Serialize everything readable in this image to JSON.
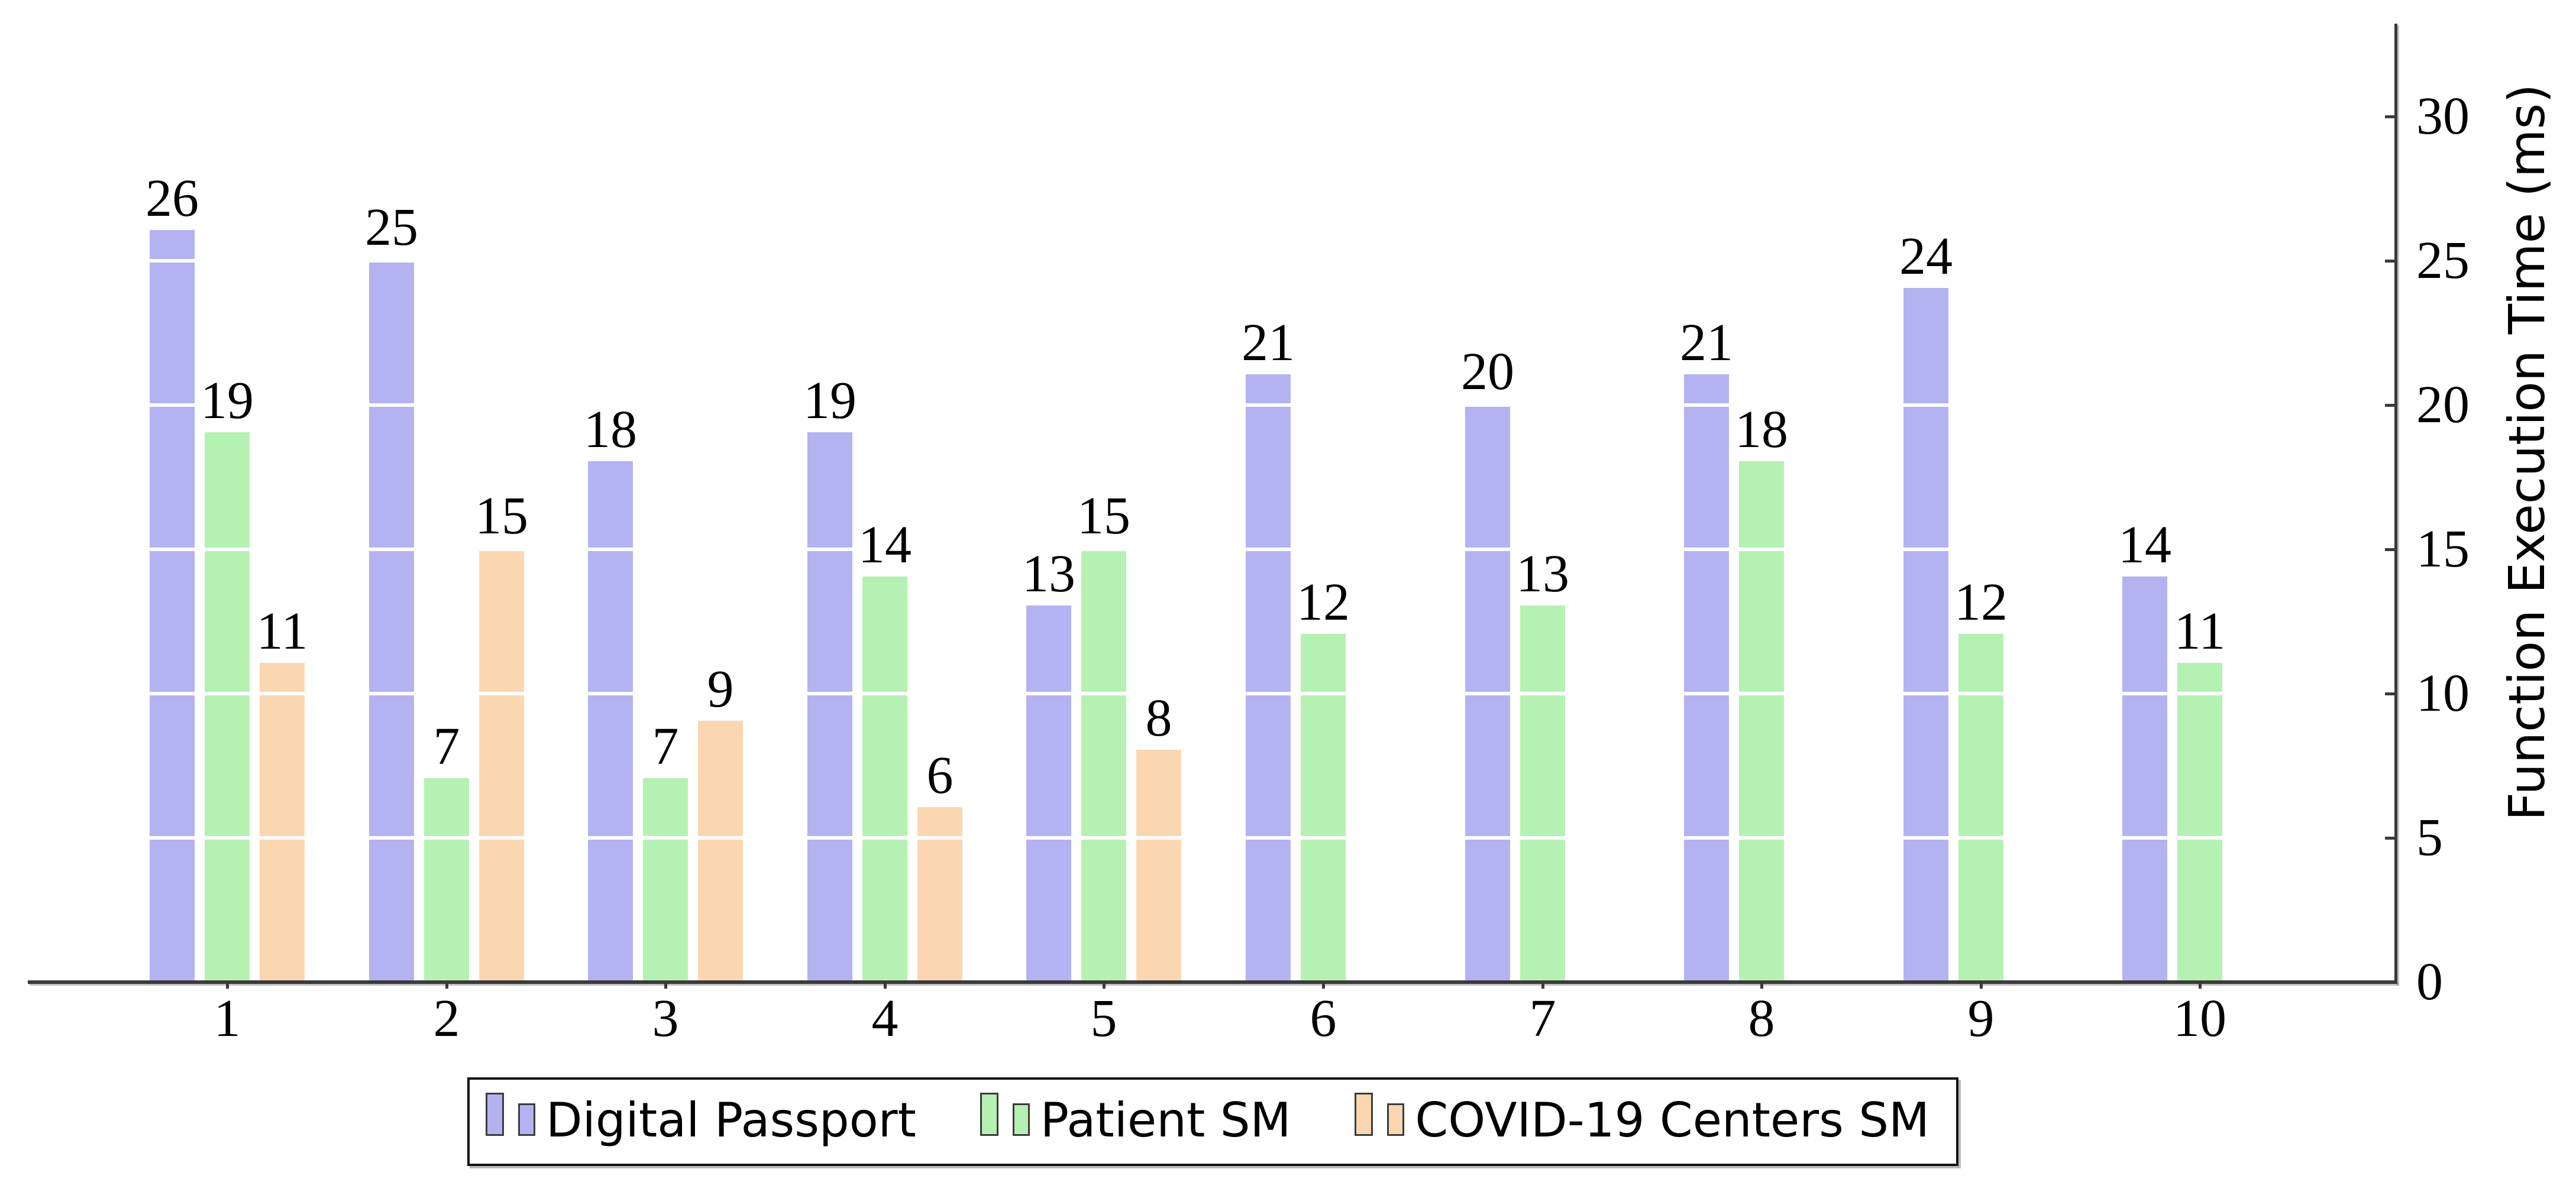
{
  "chart_data": {
    "type": "bar",
    "title": "",
    "categories": [
      "1",
      "2",
      "3",
      "4",
      "5",
      "6",
      "7",
      "8",
      "9",
      "10"
    ],
    "series": [
      {
        "name": "Digital Passport",
        "color": "#b3b3f1",
        "values": [
          26,
          25,
          18,
          19,
          13,
          21,
          20,
          21,
          24,
          14
        ]
      },
      {
        "name": "Patient SM",
        "color": "#b5f1b3",
        "values": [
          19,
          7,
          7,
          14,
          15,
          12,
          13,
          18,
          12,
          11
        ]
      },
      {
        "name": "COVID-19 Centers SM",
        "color": "#fad7b1",
        "values": [
          11,
          15,
          9,
          6,
          8,
          null,
          null,
          null,
          null,
          null
        ]
      }
    ],
    "xlabel": "",
    "ylabel": "Function Execution Time (ms)",
    "ylim": [
      0,
      30
    ],
    "yticks": [
      0,
      5,
      10,
      15,
      20,
      25,
      30
    ],
    "y_axis_side": "right",
    "bar_value_labels": true,
    "grid": "white horizontal lines over bars at 5-unit steps",
    "legend_position": "bottom-center",
    "axis_color": "#3a3a3a",
    "gridline_color": "#ffffff"
  },
  "legend": {
    "items": [
      {
        "label": "Digital Passport",
        "color": "#b3b3f1"
      },
      {
        "label": "Patient SM",
        "color": "#b5f1b3"
      },
      {
        "label": "COVID-19 Centers SM",
        "color": "#fad7b1"
      }
    ]
  },
  "y_axis": {
    "label": "Function Execution Time (ms)",
    "tick_labels": [
      "0",
      "5",
      "10",
      "15",
      "20",
      "25",
      "30"
    ]
  },
  "x_axis": {
    "tick_labels": [
      "1",
      "2",
      "3",
      "4",
      "5",
      "6",
      "7",
      "8",
      "9",
      "10"
    ]
  }
}
